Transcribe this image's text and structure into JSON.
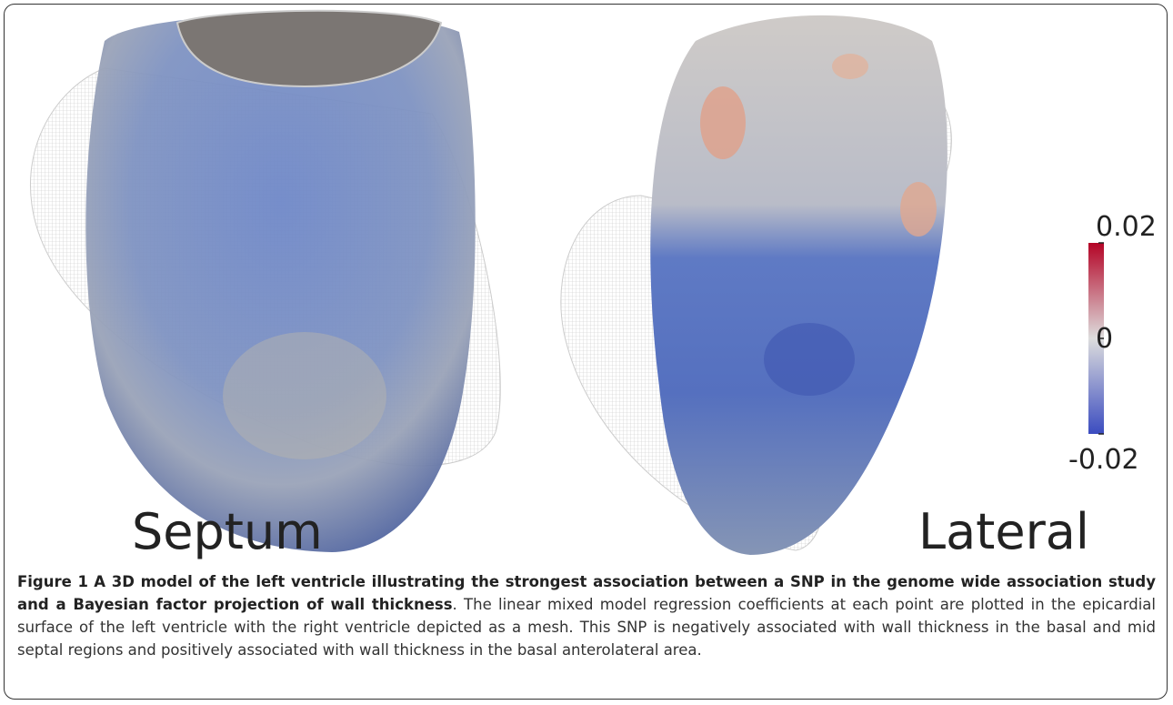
{
  "figure": {
    "panels": [
      {
        "label": "Septum"
      },
      {
        "label": "Lateral"
      }
    ],
    "colorbar": {
      "lim": [
        -0.02,
        0.02
      ],
      "ticks": [
        0.02,
        0,
        -0.02
      ]
    },
    "caption": {
      "label": "Figure 1",
      "title": "A 3D model of the left ventricle illustrating the strongest association between a SNP in the genome wide association study and a Bayesian factor projection of wall thickness",
      "text": ". The linear mixed model regression coefficients at each point are plotted in the epicardial surface of the left ventricle with the right ventricle depicted as a mesh. This SNP is negatively associated with wall thickness in the basal and mid septal regions and positively associated with wall thickness in the basal anterolateral area."
    }
  }
}
